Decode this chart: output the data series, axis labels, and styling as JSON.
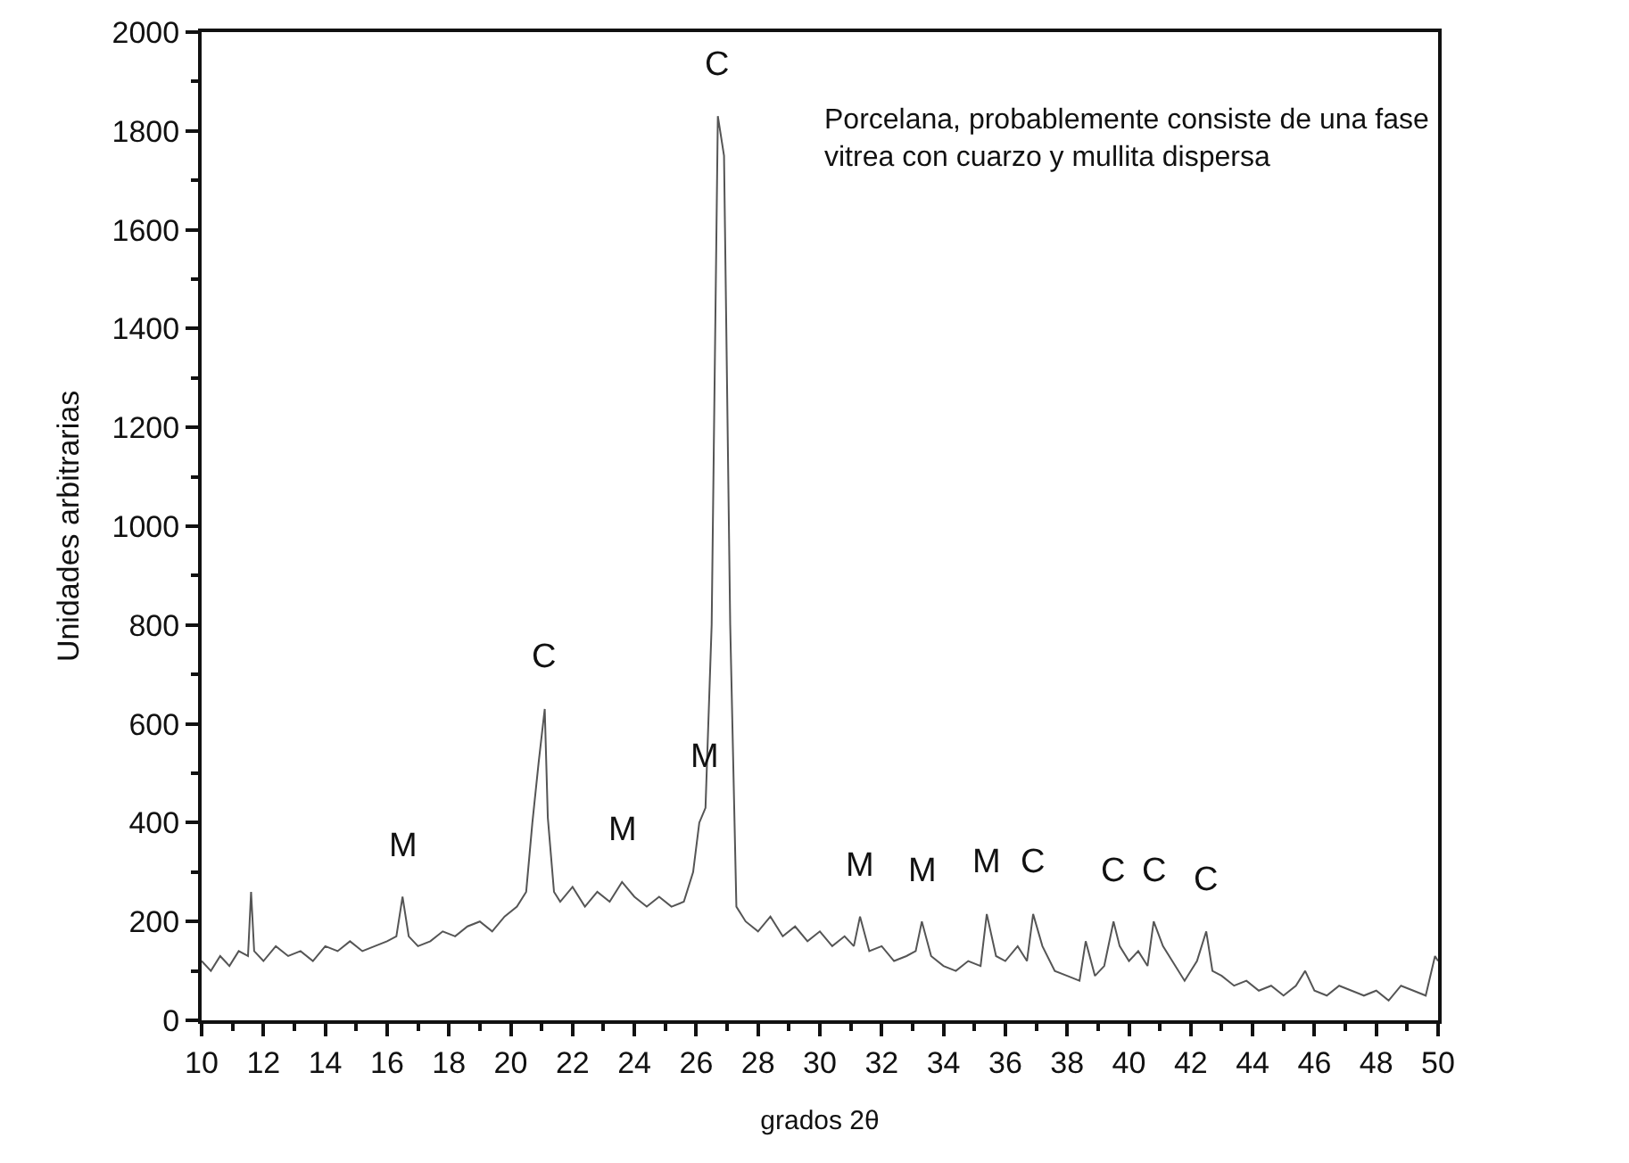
{
  "chart_data": {
    "type": "line",
    "xlabel": "grados 2θ",
    "ylabel": "Unidades arbitrarias",
    "x": [
      10,
      10.3,
      10.6,
      10.9,
      11.2,
      11.5,
      11.6,
      11.7,
      12,
      12.4,
      12.8,
      13.2,
      13.6,
      14,
      14.4,
      14.8,
      15.2,
      15.6,
      16,
      16.3,
      16.5,
      16.7,
      17,
      17.4,
      17.8,
      18.2,
      18.6,
      19,
      19.4,
      19.8,
      20.2,
      20.5,
      20.7,
      20.9,
      21.1,
      21.2,
      21.4,
      21.6,
      22,
      22.4,
      22.8,
      23.2,
      23.6,
      24,
      24.4,
      24.8,
      25.2,
      25.6,
      25.9,
      26.1,
      26.3,
      26.5,
      26.7,
      26.9,
      27.1,
      27.3,
      27.6,
      28,
      28.4,
      28.8,
      29.2,
      29.6,
      30,
      30.4,
      30.8,
      31.1,
      31.3,
      31.6,
      32,
      32.4,
      32.8,
      33.1,
      33.3,
      33.6,
      34,
      34.4,
      34.8,
      35.2,
      35.4,
      35.7,
      36,
      36.4,
      36.7,
      36.9,
      37.2,
      37.6,
      38,
      38.4,
      38.6,
      38.9,
      39.2,
      39.5,
      39.7,
      40,
      40.3,
      40.6,
      40.8,
      41.1,
      41.4,
      41.8,
      42.2,
      42.5,
      42.7,
      43,
      43.4,
      43.8,
      44.2,
      44.6,
      45,
      45.4,
      45.7,
      46,
      46.4,
      46.8,
      47.2,
      47.6,
      48,
      48.4,
      48.8,
      49.2,
      49.6,
      49.9,
      50
    ],
    "values": [
      120,
      100,
      130,
      110,
      140,
      130,
      260,
      140,
      120,
      150,
      130,
      140,
      120,
      150,
      140,
      160,
      140,
      150,
      160,
      170,
      250,
      170,
      150,
      160,
      180,
      170,
      190,
      200,
      180,
      210,
      230,
      260,
      400,
      520,
      630,
      410,
      260,
      240,
      270,
      230,
      260,
      240,
      280,
      250,
      230,
      250,
      230,
      240,
      300,
      400,
      430,
      800,
      1830,
      1750,
      800,
      230,
      200,
      180,
      210,
      170,
      190,
      160,
      180,
      150,
      170,
      150,
      210,
      140,
      150,
      120,
      130,
      140,
      200,
      130,
      110,
      100,
      120,
      110,
      215,
      130,
      120,
      150,
      120,
      215,
      150,
      100,
      90,
      80,
      160,
      90,
      110,
      200,
      150,
      120,
      140,
      110,
      200,
      150,
      120,
      80,
      120,
      180,
      100,
      90,
      70,
      80,
      60,
      70,
      50,
      70,
      100,
      60,
      50,
      70,
      60,
      50,
      60,
      40,
      70,
      60,
      50,
      130,
      120
    ],
    "color": "#555555",
    "line_style": "solid",
    "marker": "none",
    "xlim": [
      10,
      50
    ],
    "xticks": [
      10,
      12,
      14,
      16,
      18,
      20,
      22,
      24,
      26,
      28,
      30,
      32,
      34,
      36,
      38,
      40,
      42,
      44,
      46,
      48,
      50
    ],
    "ylim": [
      0,
      2000
    ],
    "yticks": [
      0,
      200,
      400,
      600,
      800,
      1000,
      1200,
      1400,
      1600,
      1800,
      2000
    ],
    "grid": false,
    "annotations": [
      {
        "text": "M",
        "x": 16.5,
        "y": 250
      },
      {
        "text": "C",
        "x": 21.1,
        "y": 630
      },
      {
        "text": "M",
        "x": 23.6,
        "y": 280
      },
      {
        "text": "M",
        "x": 26.3,
        "y": 430
      },
      {
        "text": "C",
        "x": 26.7,
        "y": 1830
      },
      {
        "text": "M",
        "x": 31.3,
        "y": 210
      },
      {
        "text": "M",
        "x": 33.3,
        "y": 200
      },
      {
        "text": "M",
        "x": 35.4,
        "y": 215
      },
      {
        "text": "C",
        "x": 36.9,
        "y": 215
      },
      {
        "text": "C",
        "x": 39.5,
        "y": 200
      },
      {
        "text": "C",
        "x": 40.8,
        "y": 200
      },
      {
        "text": "C",
        "x": 42.5,
        "y": 180
      },
      "Porcelana, probablemente consiste de una fase\nvitrea con cuarzo y mullita dispersa"
    ]
  }
}
